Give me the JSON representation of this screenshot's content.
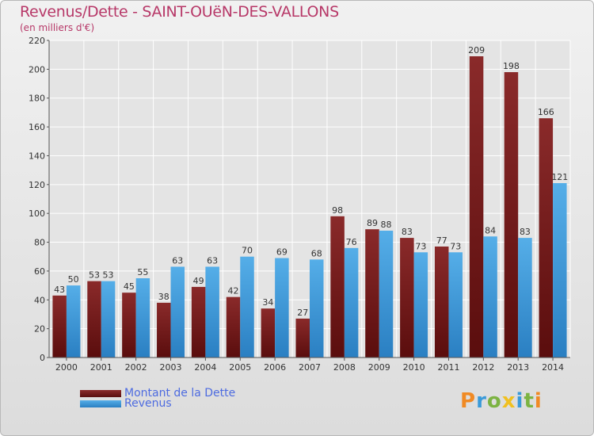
{
  "title": "Revenus/Dette - SAINT-OUëN-DES-VALLONS",
  "subtitle": "(en milliers d'€)",
  "colors": {
    "dette": "#7a1e1e",
    "revenus": "#3e9ad9",
    "title": "#b73868",
    "legend_text": "#4d6be0"
  },
  "legend": [
    {
      "label": "Montant de la Dette",
      "color": "#7a1e1e"
    },
    {
      "label": "Revenus",
      "color": "#3e9ad9"
    }
  ],
  "logo": {
    "text": "Proxiti"
  },
  "chart_data": {
    "type": "bar",
    "categories": [
      "2000",
      "2001",
      "2002",
      "2003",
      "2004",
      "2005",
      "2006",
      "2007",
      "2008",
      "2009",
      "2010",
      "2011",
      "2012",
      "2013",
      "2014"
    ],
    "series": [
      {
        "name": "Montant de la Dette",
        "values": [
          43,
          53,
          45,
          38,
          49,
          42,
          34,
          27,
          98,
          89,
          83,
          77,
          209,
          198,
          166
        ]
      },
      {
        "name": "Revenus",
        "values": [
          50,
          53,
          55,
          63,
          63,
          70,
          69,
          68,
          76,
          88,
          73,
          73,
          84,
          83,
          121
        ]
      }
    ],
    "ylim": [
      0,
      220
    ],
    "yticks": [
      0,
      20,
      40,
      60,
      80,
      100,
      120,
      140,
      160,
      180,
      200,
      220
    ],
    "grid": true,
    "legend_position": "bottom-left"
  }
}
